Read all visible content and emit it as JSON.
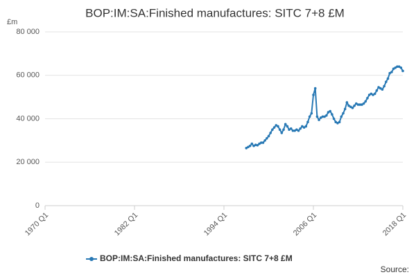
{
  "chart_data": {
    "type": "line",
    "title": "BOP:IM:SA:Finished manufactures: SITC 7+8 £M",
    "y_label": "£m",
    "source": "Source:",
    "x": [
      1997,
      1997.25,
      1997.5,
      1997.75,
      1998,
      1998.25,
      1998.5,
      1998.75,
      1999,
      1999.25,
      1999.5,
      1999.75,
      2000,
      2000.25,
      2000.5,
      2000.75,
      2001,
      2001.25,
      2001.5,
      2001.75,
      2002,
      2002.25,
      2002.5,
      2002.75,
      2003,
      2003.25,
      2003.5,
      2003.75,
      2004,
      2004.25,
      2004.5,
      2004.75,
      2005,
      2005.25,
      2005.5,
      2005.75,
      2006,
      2006.25,
      2006.5,
      2006.75,
      2007,
      2007.25,
      2007.5,
      2007.75,
      2008,
      2008.25,
      2008.5,
      2008.75,
      2009,
      2009.25,
      2009.5,
      2009.75,
      2010,
      2010.25,
      2010.5,
      2010.75,
      2011,
      2011.25,
      2011.5,
      2011.75,
      2012,
      2012.25,
      2012.5,
      2012.75,
      2013,
      2013.25,
      2013.5,
      2013.75,
      2014,
      2014.25,
      2014.5,
      2014.75,
      2015,
      2015.25,
      2015.5,
      2015.75,
      2016,
      2016.25,
      2016.5,
      2016.75,
      2017,
      2017.25,
      2017.5,
      2017.75,
      2018
    ],
    "series": [
      {
        "name": "BOP:IM:SA:Finished manufactures: SITC 7+8 £M",
        "color": "#2778b4",
        "values": [
          26500,
          27000,
          27500,
          28500,
          27500,
          28000,
          27800,
          28500,
          29000,
          29000,
          30000,
          31000,
          32000,
          33500,
          35000,
          36000,
          37000,
          36500,
          35000,
          33500,
          35000,
          37500,
          36500,
          35000,
          35500,
          34500,
          34500,
          35000,
          34500,
          35500,
          36500,
          36000,
          36500,
          38500,
          41000,
          42500,
          51000,
          54000,
          41000,
          39500,
          40500,
          41000,
          41000,
          41500,
          43000,
          43500,
          42000,
          40000,
          38500,
          38000,
          38500,
          41000,
          42500,
          44500,
          47500,
          46000,
          45500,
          45000,
          46000,
          47000,
          46500,
          46500,
          46500,
          47000,
          48000,
          49500,
          51000,
          51500,
          51000,
          51500,
          53000,
          54500,
          54000,
          53500,
          55000,
          57000,
          58500,
          61000,
          61500,
          63000,
          63500,
          64000,
          64000,
          63500,
          62000
        ]
      }
    ],
    "xlim": [
      1970,
      2018
    ],
    "xticks": [
      {
        "value": 1970,
        "label": "1970 Q1"
      },
      {
        "value": 1982,
        "label": "1982 Q1"
      },
      {
        "value": 1994,
        "label": "1994 Q1"
      },
      {
        "value": 2006,
        "label": "2006 Q1"
      },
      {
        "value": 2018,
        "label": "2018 Q1"
      }
    ],
    "ylim": [
      0,
      80000
    ],
    "yticks": [
      0,
      {
        "value": 20000,
        "label": "20 000"
      },
      {
        "value": 40000,
        "label": "40 000"
      },
      {
        "value": 60000,
        "label": "60 000"
      },
      {
        "value": 80000,
        "label": "80 000"
      }
    ],
    "grid": true,
    "legend": "bottom"
  }
}
